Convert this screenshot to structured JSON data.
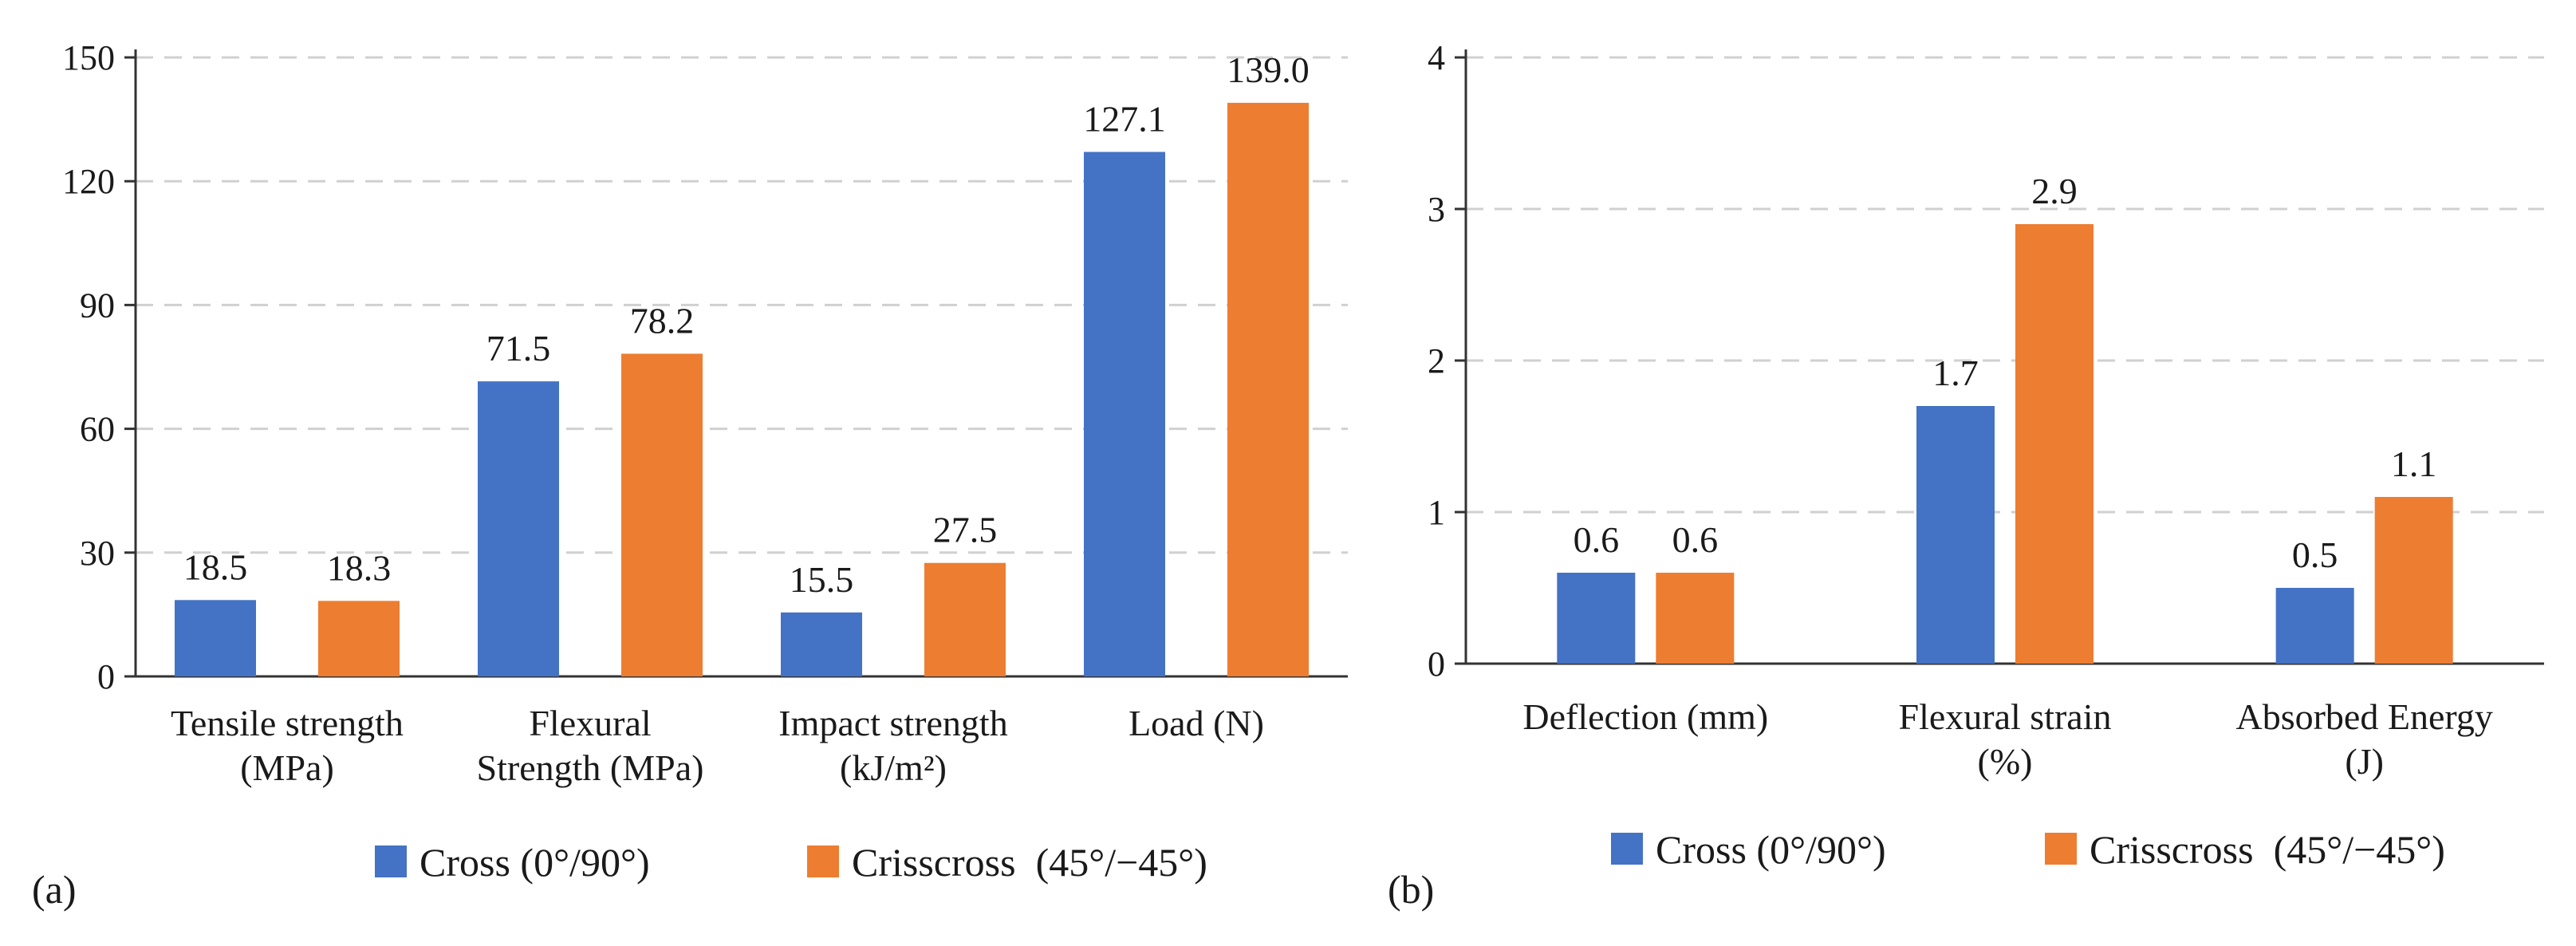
{
  "chart_data": [
    {
      "type": "bar",
      "panel_label": "(a)",
      "categories": [
        [
          "Tensile strength",
          "(MPa)"
        ],
        [
          "Flexural",
          "Strength (MPa)"
        ],
        [
          "Impact strength",
          "(kJ/m²)"
        ],
        [
          "Load (N)"
        ]
      ],
      "series": [
        {
          "name": "Cross (0°/90°)",
          "color": "#4472C4",
          "values": [
            18.5,
            71.5,
            15.5,
            127.1
          ],
          "labels": [
            "18.5",
            "71.5",
            "15.5",
            "127.1"
          ]
        },
        {
          "name": "Crisscross  (45°/−45°)",
          "color": "#ED7D31",
          "values": [
            18.3,
            78.2,
            27.5,
            139.0
          ],
          "labels": [
            "18.3",
            "78.2",
            "27.5",
            "139.0"
          ]
        }
      ],
      "yticks": [
        0,
        30,
        60,
        90,
        120,
        150
      ],
      "ylim": [
        0,
        150
      ],
      "grid": true,
      "legend": "bottom"
    },
    {
      "type": "bar",
      "panel_label": "(b)",
      "categories": [
        [
          "Deflection (mm)"
        ],
        [
          "Flexural strain",
          "(%)"
        ],
        [
          "Absorbed Energy",
          "(J)"
        ]
      ],
      "series": [
        {
          "name": "Cross (0°/90°)",
          "color": "#4472C4",
          "values": [
            0.6,
            1.7,
            0.5
          ],
          "labels": [
            "0.6",
            "1.7",
            "0.5"
          ]
        },
        {
          "name": "Crisscross  (45°/−45°)",
          "color": "#ED7D31",
          "values": [
            0.6,
            2.9,
            1.1
          ],
          "labels": [
            "0.6",
            "2.9",
            "1.1"
          ]
        }
      ],
      "yticks": [
        0,
        1,
        2,
        3,
        4
      ],
      "ylim": [
        0,
        4
      ],
      "grid": true,
      "legend": "bottom"
    }
  ]
}
